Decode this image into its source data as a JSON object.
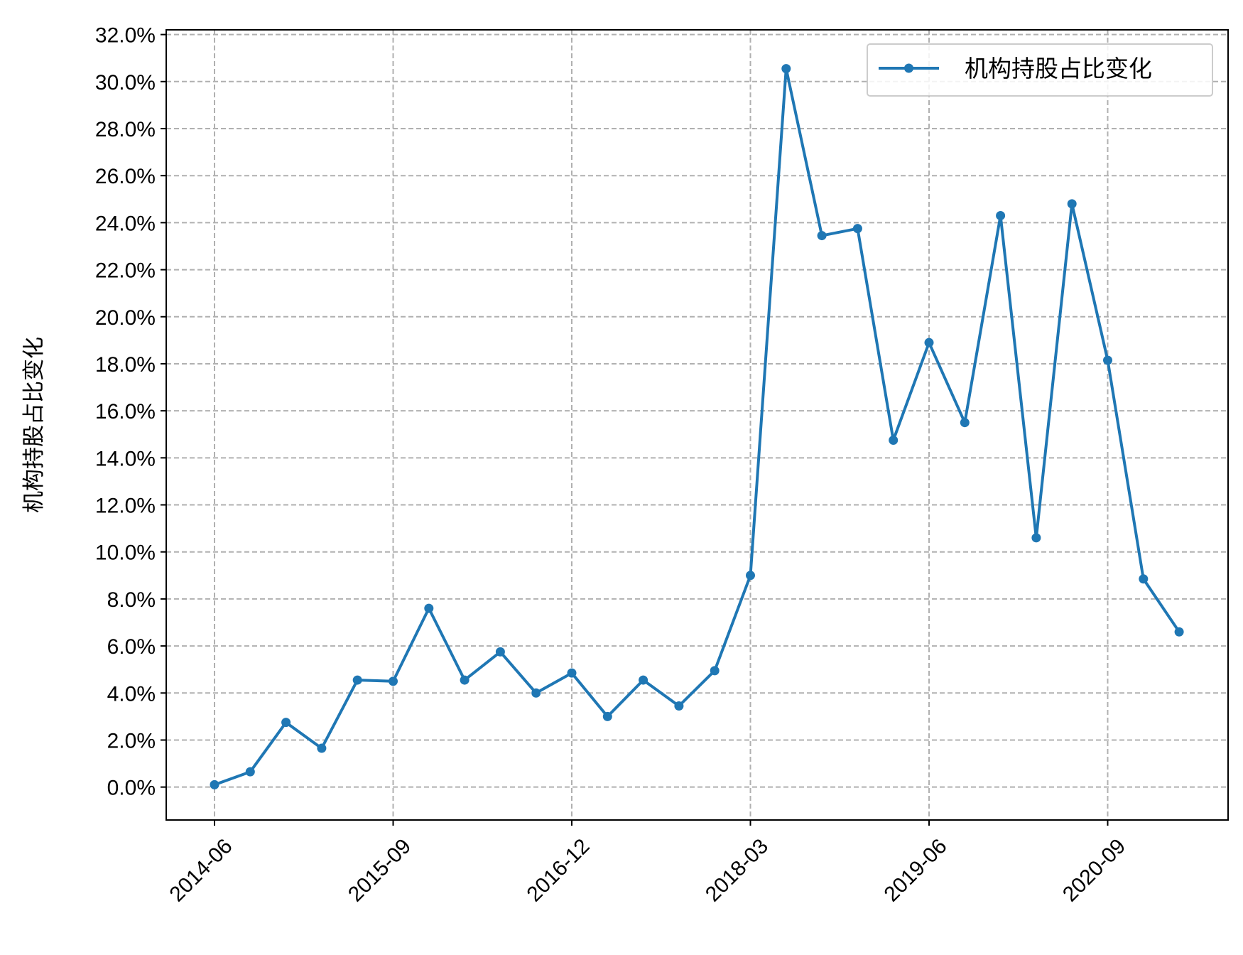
{
  "chart_data": {
    "type": "line",
    "title": "",
    "xlabel": "",
    "ylabel": "机构持股占比变化",
    "ylim": [
      -1.4,
      32.2
    ],
    "y_ticks": [
      0,
      2,
      4,
      6,
      8,
      10,
      12,
      14,
      16,
      18,
      20,
      22,
      24,
      26,
      28,
      30,
      32
    ],
    "y_tick_format": "percent_1dp",
    "x_tick_labels": [
      "2014-06",
      "2015-09",
      "2016-12",
      "2018-03",
      "2019-06",
      "2020-09"
    ],
    "x_tick_label_rotation": 45,
    "categories": [
      "2014-06",
      "2014-09",
      "2014-12",
      "2015-03",
      "2015-06",
      "2015-09",
      "2015-12",
      "2016-03",
      "2016-06",
      "2016-09",
      "2016-12",
      "2017-03",
      "2017-06",
      "2017-09",
      "2017-12",
      "2018-03",
      "2018-06",
      "2018-09",
      "2018-12",
      "2019-03",
      "2019-06",
      "2019-09",
      "2019-12",
      "2020-03",
      "2020-06",
      "2020-09",
      "2020-12",
      "2021-03"
    ],
    "series": [
      {
        "name": "机构持股占比变化",
        "color": "#1f77b4",
        "marker": "circle",
        "values": [
          0.1,
          0.65,
          2.75,
          1.65,
          4.55,
          4.5,
          7.6,
          4.55,
          5.75,
          4.0,
          4.85,
          3.0,
          4.55,
          3.45,
          4.95,
          9.0,
          30.55,
          23.45,
          23.75,
          14.75,
          18.9,
          15.5,
          24.3,
          10.6,
          24.8,
          18.15,
          8.85,
          6.6
        ]
      }
    ],
    "grid": true,
    "grid_style": "dashed",
    "legend_position": "top-right"
  }
}
